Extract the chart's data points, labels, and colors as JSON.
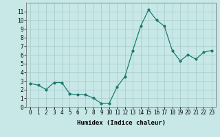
{
  "x": [
    0,
    1,
    2,
    3,
    4,
    5,
    6,
    7,
    8,
    9,
    10,
    11,
    12,
    13,
    14,
    15,
    16,
    17,
    18,
    19,
    20,
    21,
    22,
    23
  ],
  "y": [
    2.7,
    2.5,
    2.0,
    2.8,
    2.8,
    1.5,
    1.4,
    1.4,
    1.0,
    0.4,
    0.4,
    2.3,
    3.5,
    6.5,
    9.3,
    11.2,
    10.0,
    9.3,
    6.5,
    5.3,
    6.0,
    5.5,
    6.3,
    6.5
  ],
  "line_color": "#1a7a6e",
  "marker": "o",
  "marker_size": 2,
  "bg_color": "#c8e8e8",
  "grid_color": "#a8cccc",
  "xlabel": "Humidex (Indice chaleur)",
  "ylim": [
    0,
    12
  ],
  "xlim": [
    -0.5,
    23.5
  ],
  "yticks": [
    0,
    1,
    2,
    3,
    4,
    5,
    6,
    7,
    8,
    9,
    10,
    11
  ],
  "xticks": [
    0,
    1,
    2,
    3,
    4,
    5,
    6,
    7,
    8,
    9,
    10,
    11,
    12,
    13,
    14,
    15,
    16,
    17,
    18,
    19,
    20,
    21,
    22,
    23
  ],
  "tick_fontsize": 5.5,
  "label_fontsize": 6.5
}
